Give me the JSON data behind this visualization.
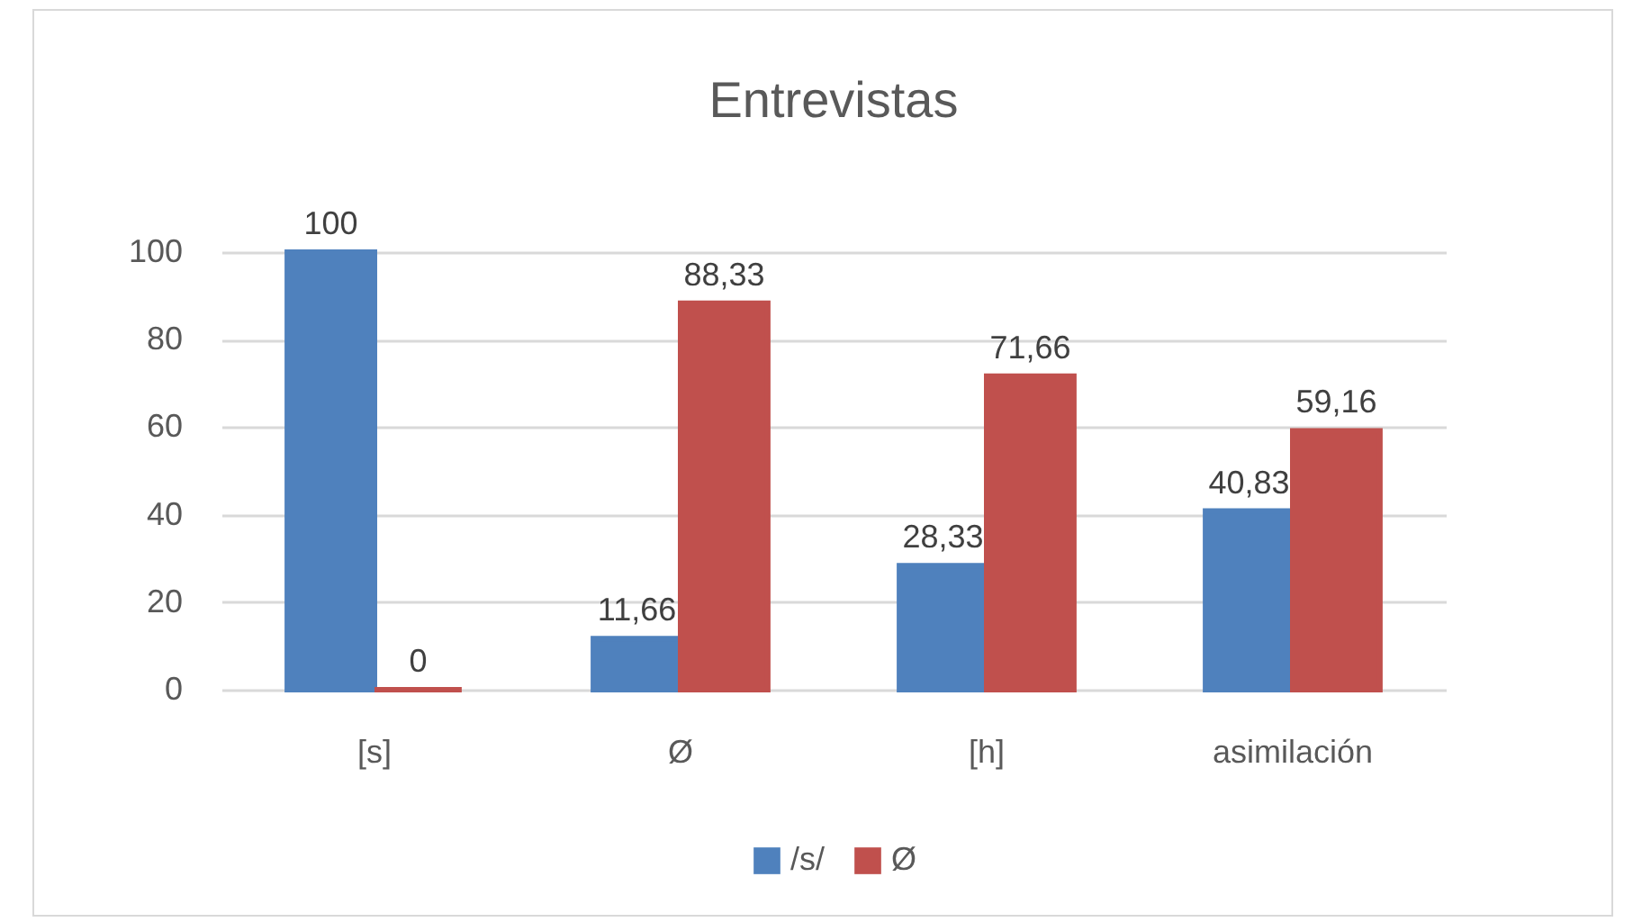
{
  "chart_data": {
    "type": "bar",
    "title": "Entrevistas",
    "categories": [
      "[s]",
      "Ø",
      "[h]",
      "asimilación"
    ],
    "series": [
      {
        "name": "/s/",
        "color": "#4f81bd",
        "values": [
          100,
          11.66,
          28.33,
          40.83
        ],
        "value_labels": [
          "100",
          "11,66",
          "28,33",
          "40,83"
        ]
      },
      {
        "name": "Ø",
        "color": "#c0504d",
        "values": [
          0,
          88.33,
          71.66,
          59.16
        ],
        "value_labels": [
          "0",
          "88,33",
          "71,66",
          "59,16"
        ]
      }
    ],
    "ylim": [
      0,
      100
    ],
    "yticks": [
      0,
      20,
      40,
      60,
      80,
      100
    ],
    "grid": "y",
    "legend": "bottom"
  }
}
